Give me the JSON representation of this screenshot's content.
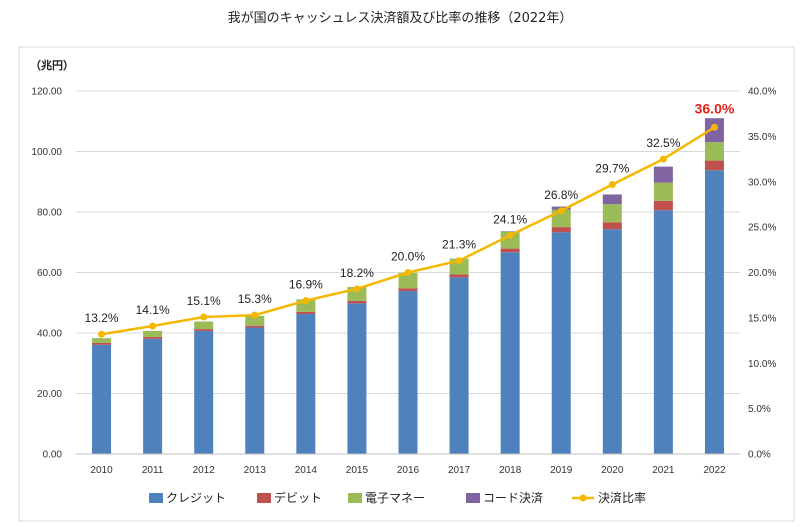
{
  "chart_data": {
    "type": "bar",
    "stacked": true,
    "title": "我が国のキャッシュレス決済額及び比率の推移（2022年）",
    "ylabel": "（兆円）",
    "categories": [
      "2010",
      "2011",
      "2012",
      "2013",
      "2014",
      "2015",
      "2016",
      "2017",
      "2018",
      "2019",
      "2020",
      "2021",
      "2022"
    ],
    "ylim": [
      0,
      120
    ],
    "y_ticks": [
      "0.00",
      "20.00",
      "40.00",
      "60.00",
      "80.00",
      "100.00",
      "120.00"
    ],
    "y2lim": [
      0,
      40
    ],
    "y2_ticks": [
      "0.0%",
      "5.0%",
      "10.0%",
      "15.0%",
      "20.0%",
      "25.0%",
      "30.0%",
      "35.0%",
      "40.0%"
    ],
    "grid": true,
    "legend_position": "bottom",
    "series": [
      {
        "name": "クレジット",
        "type": "bar",
        "color": "#4f81bd",
        "values": [
          36.1,
          38.1,
          40.7,
          41.8,
          46.3,
          49.8,
          53.9,
          58.4,
          66.7,
          73.3,
          74.3,
          80.6,
          93.8
        ]
      },
      {
        "name": "デビット",
        "type": "bar",
        "color": "#c0504d",
        "values": [
          0.6,
          0.6,
          0.6,
          0.6,
          0.7,
          0.8,
          0.9,
          1.0,
          1.2,
          1.7,
          2.3,
          3.1,
          3.2
        ]
      },
      {
        "name": "電子マネー",
        "type": "bar",
        "color": "#9bbb59",
        "values": [
          1.6,
          2.0,
          2.5,
          3.3,
          4.1,
          4.6,
          5.1,
          5.2,
          5.5,
          5.8,
          6.0,
          6.0,
          6.1
        ]
      },
      {
        "name": "コード決済",
        "type": "bar",
        "color": "#8064a2",
        "values": [
          0,
          0,
          0,
          0,
          0,
          0,
          0,
          0,
          0.2,
          1.0,
          3.2,
          5.3,
          7.9
        ]
      },
      {
        "name": "決済比率",
        "type": "line",
        "axis": "right",
        "color": "#f5b800",
        "values": [
          13.2,
          14.1,
          15.1,
          15.3,
          16.9,
          18.2,
          20.0,
          21.3,
          24.1,
          26.8,
          29.7,
          32.5,
          36.0
        ],
        "labels": [
          "13.2%",
          "14.1%",
          "15.1%",
          "15.3%",
          "16.9%",
          "18.2%",
          "20.0%",
          "21.3%",
          "24.1%",
          "26.8%",
          "29.7%",
          "32.5%",
          "36.0%"
        ]
      }
    ],
    "highlight_color": "#e0201b"
  }
}
